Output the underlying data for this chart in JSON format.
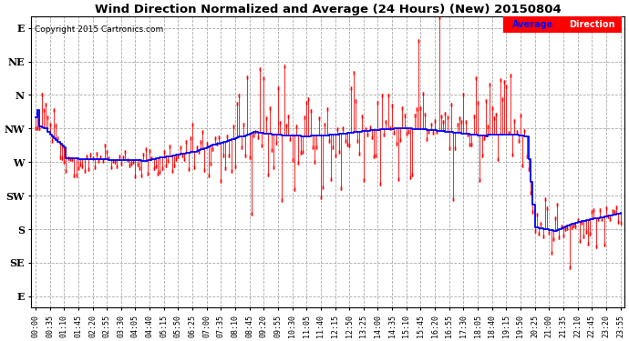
{
  "title": "Wind Direction Normalized and Average (24 Hours) (New) 20150804",
  "copyright": "Copyright 2015 Cartronics.com",
  "background_color": "#ffffff",
  "plot_bg_color": "#ffffff",
  "grid_color": "#aaaaaa",
  "ytick_labels": [
    "E",
    "NE",
    "N",
    "NW",
    "W",
    "SW",
    "S",
    "SE",
    "E"
  ],
  "ytick_values": [
    0,
    45,
    90,
    135,
    180,
    225,
    270,
    315,
    360
  ],
  "ylim": [
    375,
    -15
  ],
  "xlim": [
    -2,
    289
  ]
}
